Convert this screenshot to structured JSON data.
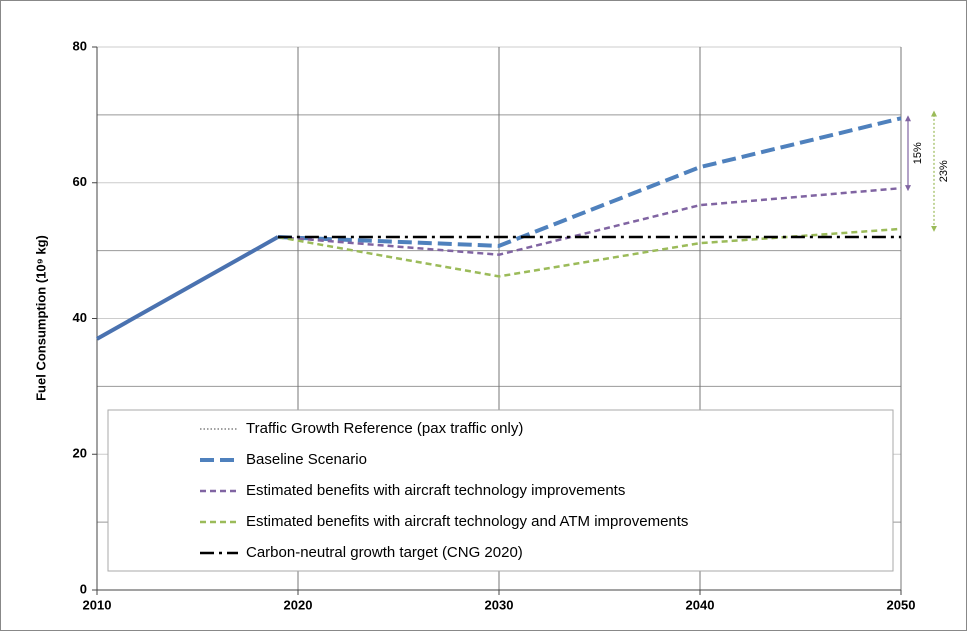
{
  "chart_data": {
    "type": "line",
    "y_label": "Fuel Consumption (10⁹ kg)",
    "x": [
      2010,
      2019,
      2030,
      2040,
      2050
    ],
    "xlim": [
      2010,
      2050
    ],
    "xticks": [
      2010,
      2020,
      2030,
      2040,
      2050
    ],
    "ylim": [
      0,
      80
    ],
    "yticks": [
      0,
      20,
      40,
      60,
      80
    ],
    "yminor_ticks": [
      10,
      30,
      50,
      70
    ],
    "grid": true,
    "series": [
      {
        "color": "#4a72b0",
        "dash": "solid",
        "values": [
          37,
          52,
          null,
          null,
          null
        ]
      },
      {
        "name": "Traffic Growth Reference (pax traffic only)",
        "color": "#808080",
        "dash": "dotted",
        "values": [
          null,
          null,
          null,
          null,
          null
        ]
      },
      {
        "name": "Baseline Scenario",
        "color": "#4f81bd",
        "dash": "dashed",
        "values": [
          null,
          52,
          50.7,
          62.3,
          69.5
        ]
      },
      {
        "name": "Estimated benefits with aircraft technology improvements",
        "color": "#8064a2",
        "dash": "short",
        "values": [
          null,
          52,
          49.4,
          56.7,
          59.2
        ]
      },
      {
        "name": "Estimated benefits with aircraft technology and ATM improvements",
        "color": "#9bbb59",
        "dash": "short",
        "values": [
          null,
          52,
          46.2,
          51.1,
          53.2
        ]
      },
      {
        "name": "Carbon-neutral growth target (CNG 2020)",
        "color": "#000000",
        "dash": "dashdot",
        "values": [
          null,
          52,
          52,
          52,
          52
        ]
      }
    ],
    "annotations": [
      {
        "text": "15%",
        "color": "#8064a2",
        "from": 59.2,
        "to": 69.5
      },
      {
        "text": "23%",
        "color": "#9bbb59",
        "from": 53.2,
        "to": 70.2
      }
    ]
  }
}
